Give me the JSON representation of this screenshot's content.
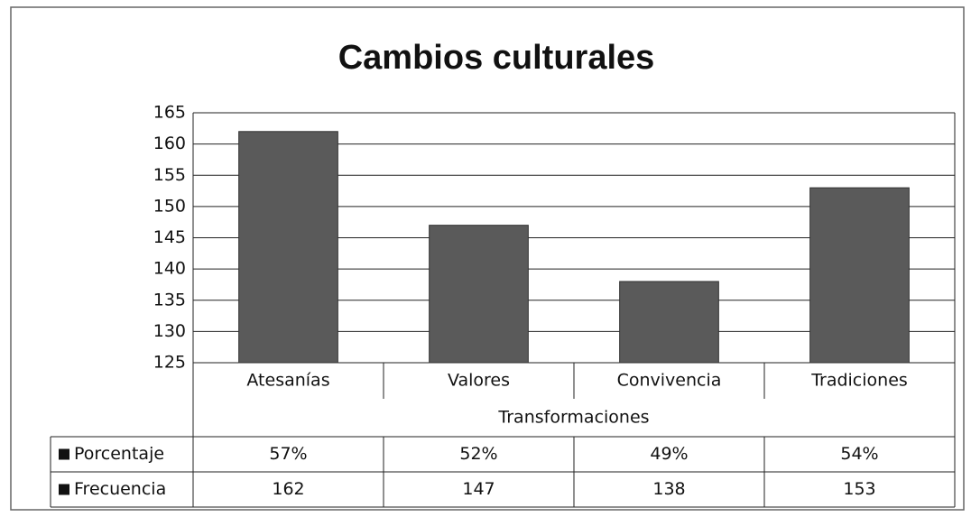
{
  "chart_data": {
    "type": "bar",
    "title": "Cambios culturales",
    "categories": [
      "Atesanías",
      "Valores",
      "Convivencia",
      "Tradiciones"
    ],
    "x_label": "Transformaciones",
    "series": [
      {
        "name": "Porcentaje",
        "values": [
          57,
          52,
          49,
          54
        ],
        "value_labels": [
          "57%",
          "52%",
          "49%",
          "54%"
        ]
      },
      {
        "name": "Frecuencia",
        "values": [
          162,
          147,
          138,
          153
        ],
        "color": "#5a5a5a"
      }
    ],
    "ylim": [
      125,
      165
    ],
    "yticks": [
      125,
      130,
      135,
      140,
      145,
      150,
      155,
      160,
      165
    ],
    "grid": true
  }
}
